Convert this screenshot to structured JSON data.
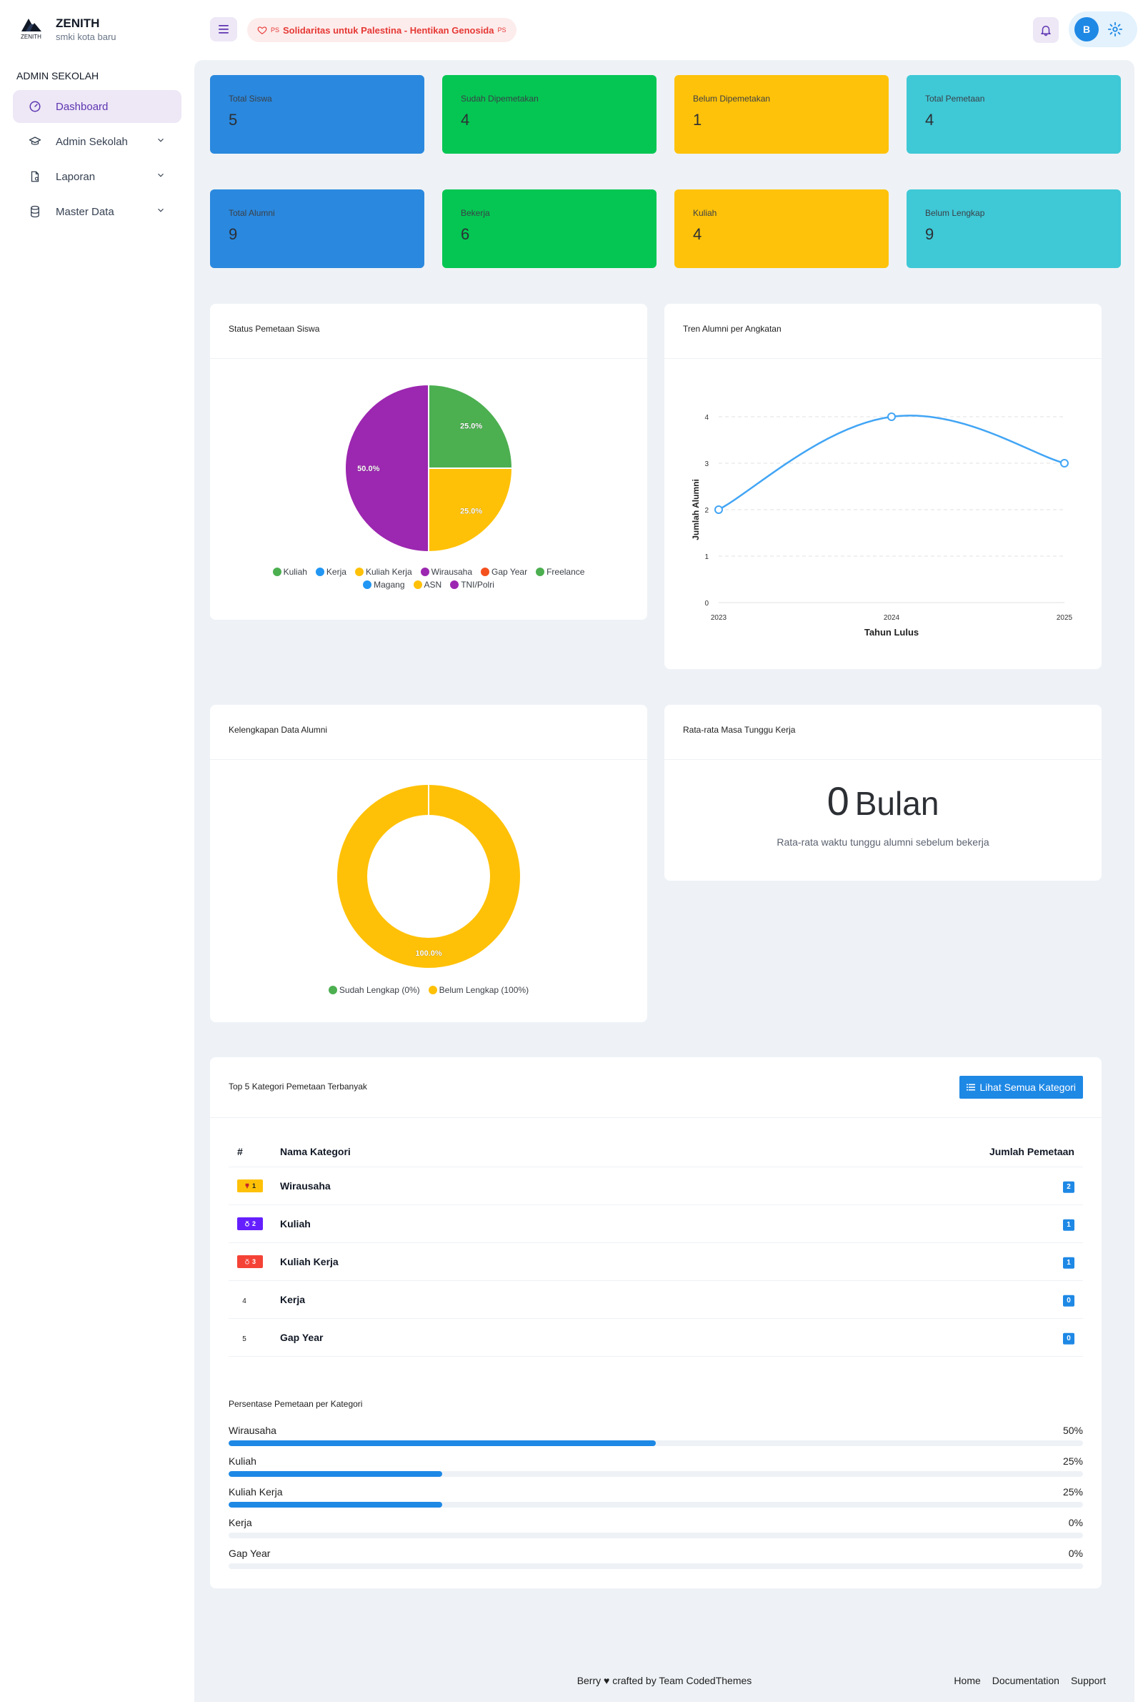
{
  "header": {
    "brand": "ZENITH",
    "logo_text": "ZENITH",
    "school": "smki kota baru",
    "banner_prefix": "PS",
    "banner_text": "Solidaritas untuk Palestina - Hentikan Genosida",
    "banner_suffix": "PS",
    "avatar_initial": "B",
    "icons": [
      "menu-icon",
      "heart-icon",
      "bell-icon",
      "gear-icon"
    ]
  },
  "sidebar": {
    "section_title": "ADMIN SEKOLAH",
    "items": [
      {
        "label": "Dashboard",
        "icon": "dashboard-icon",
        "active": true
      },
      {
        "label": "Admin Sekolah",
        "icon": "graduation-cap-icon"
      },
      {
        "label": "Laporan",
        "icon": "report-icon"
      },
      {
        "label": "Master Data",
        "icon": "database-icon"
      }
    ]
  },
  "stats_row1": [
    {
      "title": "Total Siswa",
      "value": "5",
      "color": "#2a88de"
    },
    {
      "title": "Sudah Dipemetakan",
      "value": "4",
      "color": "#05c653"
    },
    {
      "title": "Belum Dipemetakan",
      "value": "1",
      "color": "#fec20a"
    },
    {
      "title": "Total Pemetaan",
      "value": "4",
      "color": "#3fc8d6"
    }
  ],
  "stats_row2": [
    {
      "title": "Total Alumni",
      "value": "9",
      "color": "#2a88de"
    },
    {
      "title": "Bekerja",
      "value": "6",
      "color": "#05c653"
    },
    {
      "title": "Kuliah",
      "value": "4",
      "color": "#fec20a"
    },
    {
      "title": "Belum Lengkap",
      "value": "9",
      "color": "#3fc8d6"
    }
  ],
  "pie_card": {
    "title": "Status Pemetaan Siswa"
  },
  "line_card": {
    "title": "Tren Alumni per Angkatan"
  },
  "donut_card": {
    "title": "Kelengkapan Data Alumni"
  },
  "wait_card": {
    "title": "Rata-rata Masa Tunggu Kerja",
    "value": "0",
    "unit": "Bulan",
    "description": "Rata-rata waktu tunggu alumni sebelum bekerja"
  },
  "chart_data": [
    {
      "type": "pie",
      "title": "Status Pemetaan Siswa",
      "slices": [
        {
          "label": "Freelance",
          "value": 25.0,
          "color": "#4caf50",
          "label_text": "25.0%"
        },
        {
          "label": "ASN",
          "value": 25.0,
          "color": "#ffc107",
          "label_text": "25.0%"
        },
        {
          "label": "TNI/Polri",
          "value": 50.0,
          "color": "#9c27b0",
          "label_text": "50.0%"
        }
      ],
      "legend": [
        {
          "label": "Kuliah",
          "color": "#4caf50"
        },
        {
          "label": "Kerja",
          "color": "#2196f3"
        },
        {
          "label": "Kuliah Kerja",
          "color": "#ffc107"
        },
        {
          "label": "Wirausaha",
          "color": "#9c27b0"
        },
        {
          "label": "Gap Year",
          "color": "#f4511e"
        },
        {
          "label": "Freelance",
          "color": "#4caf50"
        },
        {
          "label": "Magang",
          "color": "#2196f3"
        },
        {
          "label": "ASN",
          "color": "#ffc107"
        },
        {
          "label": "TNI/Polri",
          "color": "#9c27b0"
        }
      ]
    },
    {
      "type": "line",
      "title": "Tren Alumni per Angkatan",
      "x": [
        "2023",
        "2024",
        "2025"
      ],
      "series": [
        {
          "values": [
            2,
            4,
            3
          ]
        }
      ],
      "xlabel": "Tahun Lulus",
      "ylabel": "Jumlah Alumni",
      "ylim": [
        0,
        4
      ],
      "yticks": [
        "0",
        "1",
        "2",
        "3",
        "4"
      ],
      "color": "#42a5f5",
      "grid": true
    },
    {
      "type": "pie",
      "title": "Kelengkapan Data Alumni",
      "donut": true,
      "slices": [
        {
          "label": "Sudah Lengkap (0%)",
          "value": 0,
          "color": "#4caf50"
        },
        {
          "label": "Belum Lengkap (100%)",
          "value": 100,
          "color": "#ffc107",
          "label_text": "100.0%"
        }
      ]
    }
  ],
  "top_categories": {
    "title": "Top 5 Kategori Pemetaan Terbanyak",
    "button_label": "Lihat Semua Kategori",
    "columns": [
      "#",
      "Nama Kategori",
      "Jumlah Pemetaan"
    ],
    "rows": [
      {
        "rank": "1",
        "name": "Wirausaha",
        "count": "2",
        "badge_color": "#ffc107",
        "icon": "trophy-icon"
      },
      {
        "rank": "2",
        "name": "Kuliah",
        "count": "1",
        "badge_color": "#651fff",
        "icon": "medal-icon"
      },
      {
        "rank": "3",
        "name": "Kuliah Kerja",
        "count": "1",
        "badge_color": "#f44336",
        "icon": "medal-icon"
      },
      {
        "rank": "4",
        "name": "Kerja",
        "count": "0"
      },
      {
        "rank": "5",
        "name": "Gap Year",
        "count": "0"
      }
    ],
    "percent_title": "Persentase Pemetaan per Kategori",
    "percent_rows": [
      {
        "name": "Wirausaha",
        "percent": 50,
        "label": "50%"
      },
      {
        "name": "Kuliah",
        "percent": 25,
        "label": "25%"
      },
      {
        "name": "Kuliah Kerja",
        "percent": 25,
        "label": "25%"
      },
      {
        "name": "Kerja",
        "percent": 0,
        "label": "0%"
      },
      {
        "name": "Gap Year",
        "percent": 0,
        "label": "0%"
      }
    ]
  },
  "footer": {
    "credit": "Berry ♥ crafted by Team CodedThemes",
    "links": [
      "Home",
      "Documentation",
      "Support"
    ]
  }
}
